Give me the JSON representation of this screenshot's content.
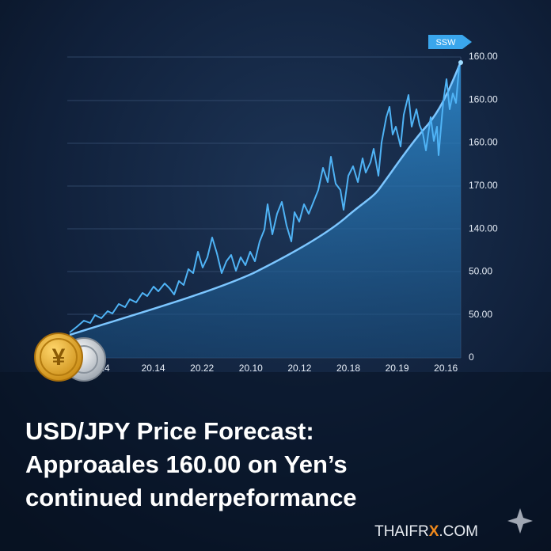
{
  "header": {
    "title_lines": [
      "USD/JPY Price Forecast:",
      "Approaales 160.00 on Yen’s",
      "continued underpeformance"
    ]
  },
  "chart": {
    "badge": "SSW",
    "y_labels": [
      "160.00",
      "160.00",
      "160.00",
      "170.00",
      "140.00",
      "50.00",
      "50.00",
      "0"
    ],
    "x_labels": [
      "24",
      "20.14",
      "20.22",
      "20.10",
      "20.12",
      "20.18",
      "20.19",
      "20.16"
    ]
  },
  "brand": {
    "parts": [
      "THAIFR",
      "X",
      ".COM"
    ]
  }
}
